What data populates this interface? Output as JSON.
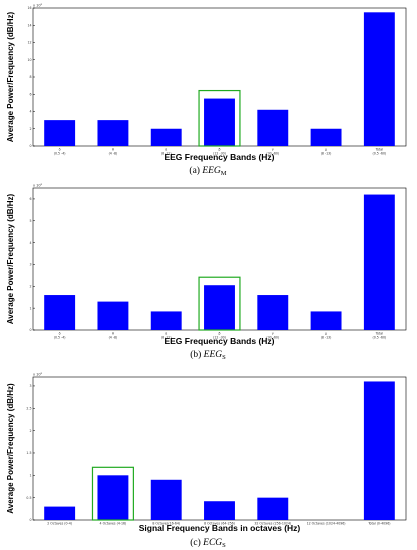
{
  "chart_data": [
    {
      "type": "bar",
      "ylabel": "Average Power/Frequency (dB/Hz)",
      "xlabel": "EEG Frequency Bands (Hz)",
      "caption": "(a) EEG",
      "caption_sub": "M",
      "multiplier": "x 10⁵",
      "categories": [
        "δ\n(0.5 -4)",
        "θ\n(4 -8)",
        "α\n(8 -12)",
        "β\n(12 -30)",
        "γ\n(30 -60)",
        "μ\n(8 -13)",
        "Total\n(0.5 -60)"
      ],
      "values": [
        3.0,
        3.0,
        2.0,
        5.5,
        4.2,
        2.0,
        15.5
      ],
      "ylim": [
        0,
        16
      ],
      "yticks": [
        "0",
        "2",
        "4",
        "6",
        "8",
        "10",
        "12",
        "14",
        "16"
      ],
      "highlight_index": 3,
      "bar_color": "#0000ff",
      "highlight_color": "#22aa22"
    },
    {
      "type": "bar",
      "ylabel": "Average Power/Frequency (dB/Hz)",
      "xlabel": "EEG Frequency Bands (Hz)",
      "caption": "(b) EEG",
      "caption_sub": "S",
      "multiplier": "x 10⁵",
      "categories": [
        "δ\n(0.5 -4)",
        "θ\n(4 -8)",
        "α\n(8 -12)",
        "β\n(12 -30)",
        "γ\n(30 -60)",
        "μ\n(8 -13)",
        "Total\n(0.5 -60)"
      ],
      "values": [
        1.6,
        1.3,
        0.85,
        2.05,
        1.6,
        0.85,
        6.2
      ],
      "ylim": [
        0,
        6.5
      ],
      "yticks": [
        "0",
        "1",
        "2",
        "3",
        "4",
        "5",
        "6"
      ],
      "highlight_index": 3,
      "bar_color": "#0000ff",
      "highlight_color": "#22aa22"
    },
    {
      "type": "bar",
      "ylabel": "Average Power/Frequency (dB/Hz)",
      "xlabel": "Signal Frequency Bands in octaves (Hz)",
      "caption": "(c) ECG",
      "caption_sub": "S",
      "multiplier": "x 10⁵",
      "categories": [
        "2 Octaves (0-4)",
        "4 Octaves (4-16)",
        "8 Octaves(16-64)",
        "8 Octaves (64-256)",
        "32 Octaves (256-1024)",
        "12 Octaves (1024-4096)",
        "Total (0-4096)"
      ],
      "values": [
        0.3,
        1.0,
        0.9,
        0.42,
        0.5,
        0.0,
        3.1
      ],
      "ylim": [
        0,
        3.2
      ],
      "yticks": [
        "0",
        "0.5",
        "1",
        "1.5",
        "2",
        "2.5",
        "3"
      ],
      "highlight_index": 1,
      "bar_color": "#0000ff",
      "highlight_color": "#22aa22"
    }
  ]
}
